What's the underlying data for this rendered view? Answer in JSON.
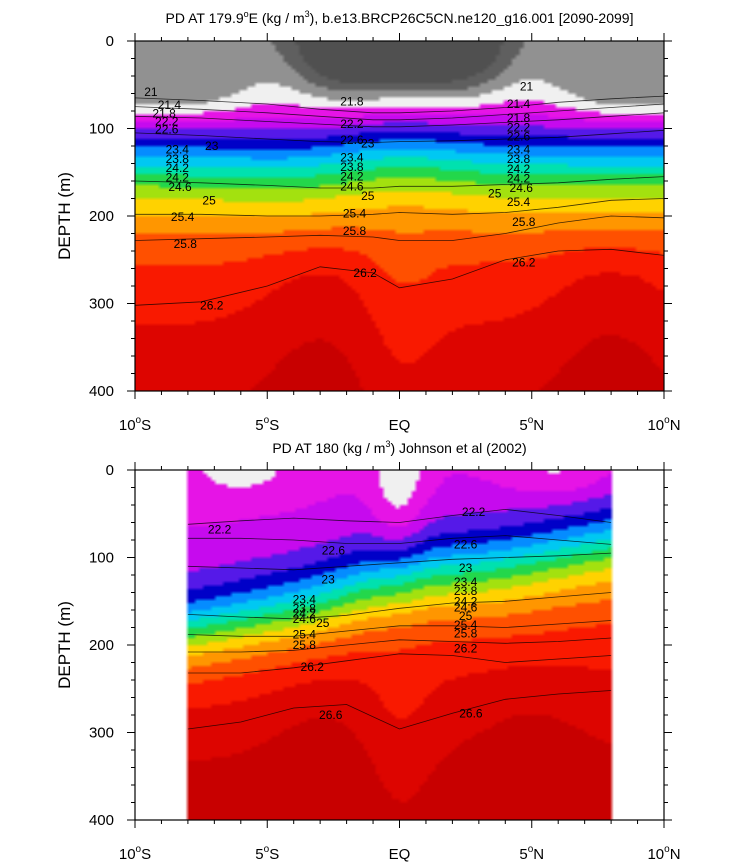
{
  "chart_data": [
    {
      "type": "contour",
      "title_prefix": "PD AT 179.9",
      "title_deg": "o",
      "title_mid": "E (kg / m",
      "title_sup": "3",
      "title_suffix": "), b.e13.BRCP26C5CN.ne120_g16.001 [2090-2099]",
      "ylabel": "DEPTH (m)",
      "xlim": [
        -10,
        10
      ],
      "ylim": [
        0,
        400
      ],
      "x_ticks": [
        {
          "v": -10,
          "label": "10",
          "deg": "o",
          "hemi": "S"
        },
        {
          "v": -5,
          "label": "5",
          "deg": "o",
          "hemi": "S"
        },
        {
          "v": 0,
          "label": "EQ",
          "deg": "",
          "hemi": ""
        },
        {
          "v": 5,
          "label": "5",
          "deg": "o",
          "hemi": "N"
        },
        {
          "v": 10,
          "label": "10",
          "deg": "o",
          "hemi": "N"
        }
      ],
      "y_ticks": [
        "0",
        "100",
        "200",
        "300",
        "400"
      ],
      "y_tick_values": [
        0,
        100,
        200,
        300,
        400
      ],
      "data_extent": [
        -10,
        10
      ],
      "contour_levels": [
        20.2,
        20.6,
        21,
        21.4,
        21.8,
        22.2,
        22.6,
        23,
        23.4,
        23.8,
        24.2,
        24.6,
        25,
        25.4,
        25.8,
        26.2,
        26.6,
        27
      ],
      "isopycnal_depths": [
        {
          "level": 21.4,
          "x": [
            -10,
            -7.5,
            -5,
            -3,
            -1,
            0,
            2,
            4,
            6,
            8,
            10
          ],
          "depth": [
            65,
            68,
            72,
            78,
            82,
            82,
            80,
            76,
            70,
            66,
            63
          ]
        },
        {
          "level": 21.8,
          "x": [
            -10,
            -7.5,
            -5,
            -3,
            -1,
            0,
            2,
            4,
            6,
            8,
            10
          ],
          "depth": [
            75,
            78,
            82,
            86,
            90,
            90,
            88,
            84,
            80,
            76,
            72
          ]
        },
        {
          "level": 22.2,
          "x": [
            -10,
            -7.5,
            -5,
            -3,
            -1,
            0,
            2,
            4,
            6,
            8,
            10
          ],
          "depth": [
            86,
            88,
            92,
            95,
            98,
            98,
            96,
            93,
            90,
            86,
            82
          ]
        },
        {
          "level": 23,
          "x": [
            -10,
            -7.5,
            -5,
            -3,
            -1,
            0,
            2,
            4,
            6,
            8,
            10
          ],
          "depth": [
            105,
            108,
            112,
            115,
            116,
            115,
            114,
            112,
            110,
            106,
            102
          ]
        },
        {
          "level": 24.6,
          "x": [
            -10,
            -7.5,
            -5,
            -3,
            -1,
            0,
            2,
            4,
            6,
            8,
            10
          ],
          "depth": [
            160,
            162,
            165,
            168,
            168,
            166,
            166,
            164,
            162,
            158,
            155
          ]
        },
        {
          "level": 25.4,
          "x": [
            -10,
            -7.5,
            -5,
            -3,
            -1,
            0,
            2,
            4,
            6,
            8,
            10
          ],
          "depth": [
            198,
            198,
            200,
            200,
            198,
            196,
            198,
            196,
            190,
            182,
            180
          ]
        },
        {
          "level": 25.8,
          "x": [
            -10,
            -7.5,
            -5,
            -3,
            -1,
            0,
            2,
            4,
            6,
            8,
            10
          ],
          "depth": [
            228,
            226,
            224,
            222,
            224,
            228,
            228,
            220,
            208,
            200,
            202
          ]
        },
        {
          "level": 26.2,
          "x": [
            -10,
            -7.5,
            -5,
            -3,
            -1,
            0,
            2,
            4,
            6,
            8,
            10
          ],
          "depth": [
            302,
            298,
            280,
            258,
            265,
            282,
            272,
            250,
            240,
            238,
            245
          ]
        }
      ],
      "contour_labels": [
        {
          "text": "21",
          "x": -9.4,
          "depth": 58
        },
        {
          "text": "21.4",
          "x": -8.7,
          "depth": 73
        },
        {
          "text": "21.8",
          "x": -8.9,
          "depth": 83
        },
        {
          "text": "22.2",
          "x": -8.8,
          "depth": 92
        },
        {
          "text": "22.6",
          "x": -8.8,
          "depth": 101
        },
        {
          "text": "23",
          "x": -7.1,
          "depth": 120
        },
        {
          "text": "23.4",
          "x": -8.4,
          "depth": 124
        },
        {
          "text": "23.8",
          "x": -8.4,
          "depth": 135
        },
        {
          "text": "24.2",
          "x": -8.4,
          "depth": 145
        },
        {
          "text": "24.2",
          "x": -8.4,
          "depth": 156
        },
        {
          "text": "24.6",
          "x": -8.3,
          "depth": 167
        },
        {
          "text": "25",
          "x": -7.2,
          "depth": 182
        },
        {
          "text": "25.4",
          "x": -8.2,
          "depth": 201
        },
        {
          "text": "25.8",
          "x": -8.1,
          "depth": 232
        },
        {
          "text": "26.2",
          "x": -7.1,
          "depth": 302
        },
        {
          "text": "21.8",
          "x": -1.8,
          "depth": 69
        },
        {
          "text": "22.2",
          "x": -1.8,
          "depth": 95
        },
        {
          "text": "22.6",
          "x": -1.8,
          "depth": 113
        },
        {
          "text": "23",
          "x": -1.2,
          "depth": 117
        },
        {
          "text": "23.4",
          "x": -1.8,
          "depth": 133
        },
        {
          "text": "23.8",
          "x": -1.8,
          "depth": 144
        },
        {
          "text": "24.2",
          "x": -1.8,
          "depth": 155
        },
        {
          "text": "24.6",
          "x": -1.8,
          "depth": 166
        },
        {
          "text": "25",
          "x": -1.2,
          "depth": 177
        },
        {
          "text": "25.4",
          "x": -1.7,
          "depth": 197
        },
        {
          "text": "25.8",
          "x": -1.7,
          "depth": 217
        },
        {
          "text": "26.2",
          "x": -1.3,
          "depth": 265
        },
        {
          "text": "21",
          "x": 4.8,
          "depth": 52
        },
        {
          "text": "21.4",
          "x": 4.5,
          "depth": 72
        },
        {
          "text": "21.8",
          "x": 4.5,
          "depth": 88
        },
        {
          "text": "22.2",
          "x": 4.5,
          "depth": 99
        },
        {
          "text": "22.6",
          "x": 4.5,
          "depth": 109
        },
        {
          "text": "23.4",
          "x": 4.5,
          "depth": 124
        },
        {
          "text": "23.8",
          "x": 4.5,
          "depth": 135
        },
        {
          "text": "24.2",
          "x": 4.5,
          "depth": 146
        },
        {
          "text": "24.2",
          "x": 4.5,
          "depth": 157
        },
        {
          "text": "24.6",
          "x": 4.6,
          "depth": 168
        },
        {
          "text": "25",
          "x": 3.6,
          "depth": 174
        },
        {
          "text": "25.4",
          "x": 4.5,
          "depth": 184
        },
        {
          "text": "25.8",
          "x": 4.7,
          "depth": 207
        },
        {
          "text": "26.2",
          "x": 4.7,
          "depth": 253
        }
      ]
    },
    {
      "type": "contour",
      "title_prefix": "PD AT 180 (kg / m",
      "title_sup": "3",
      "title_suffix": ") Johnson et al (2002)",
      "ylabel": "DEPTH (m)",
      "xlim": [
        -10,
        10
      ],
      "ylim": [
        0,
        400
      ],
      "x_ticks": [
        {
          "v": -10,
          "label": "10",
          "deg": "o",
          "hemi": "S"
        },
        {
          "v": -5,
          "label": "5",
          "deg": "o",
          "hemi": "S"
        },
        {
          "v": 0,
          "label": "EQ",
          "deg": "",
          "hemi": ""
        },
        {
          "v": 5,
          "label": "5",
          "deg": "o",
          "hemi": "N"
        },
        {
          "v": 10,
          "label": "10",
          "deg": "o",
          "hemi": "N"
        }
      ],
      "y_ticks": [
        "0",
        "100",
        "200",
        "300",
        "400"
      ],
      "y_tick_values": [
        0,
        100,
        200,
        300,
        400
      ],
      "data_extent": [
        -8,
        8
      ],
      "contour_levels": [
        20.2,
        20.6,
        21,
        21.4,
        21.8,
        22.2,
        22.6,
        23,
        23.4,
        23.8,
        24.2,
        24.6,
        25,
        25.4,
        25.8,
        26.2,
        26.6,
        27
      ],
      "isopycnal_depths": [
        {
          "level": 22.2,
          "x": [
            -8,
            -6,
            -4,
            -2,
            0,
            2,
            4,
            6,
            8
          ],
          "depth": [
            62,
            58,
            55,
            58,
            60,
            52,
            45,
            52,
            60
          ]
        },
        {
          "level": 22.6,
          "x": [
            -8,
            -6,
            -4,
            -2,
            0,
            2,
            4,
            6,
            8
          ],
          "depth": [
            78,
            78,
            80,
            84,
            84,
            78,
            75,
            80,
            85
          ]
        },
        {
          "level": 23,
          "x": [
            -8,
            -6,
            -4,
            -2,
            0,
            2,
            4,
            6,
            8
          ],
          "depth": [
            110,
            112,
            114,
            110,
            106,
            102,
            100,
            98,
            95
          ]
        },
        {
          "level": 24.6,
          "x": [
            -8,
            -6,
            -4,
            -2,
            0,
            2,
            4,
            6,
            8
          ],
          "depth": [
            165,
            168,
            170,
            166,
            158,
            152,
            150,
            145,
            140
          ]
        },
        {
          "level": 25.4,
          "x": [
            -8,
            -6,
            -4,
            -2,
            0,
            2,
            4,
            6,
            8
          ],
          "depth": [
            188,
            190,
            190,
            184,
            178,
            178,
            180,
            176,
            172
          ]
        },
        {
          "level": 25.8,
          "x": [
            -8,
            -6,
            -4,
            -2,
            0,
            2,
            4,
            6,
            8
          ],
          "depth": [
            208,
            208,
            206,
            200,
            194,
            196,
            198,
            196,
            192
          ]
        },
        {
          "level": 26.2,
          "x": [
            -8,
            -6,
            -4,
            -2,
            0,
            2,
            4,
            6,
            8
          ],
          "depth": [
            232,
            232,
            226,
            218,
            210,
            212,
            220,
            216,
            212
          ]
        },
        {
          "level": 26.6,
          "x": [
            -8,
            -6,
            -4,
            -2,
            0,
            2,
            4,
            6,
            8
          ],
          "depth": [
            296,
            288,
            272,
            268,
            296,
            278,
            262,
            256,
            252
          ]
        }
      ],
      "contour_labels": [
        {
          "text": "22.2",
          "x": -6.8,
          "depth": 68
        },
        {
          "text": "22.6",
          "x": -2.5,
          "depth": 92
        },
        {
          "text": "23",
          "x": -2.7,
          "depth": 125
        },
        {
          "text": "23.4",
          "x": -3.6,
          "depth": 148
        },
        {
          "text": "23.8",
          "x": -3.6,
          "depth": 158
        },
        {
          "text": "24.2",
          "x": -3.6,
          "depth": 164
        },
        {
          "text": "24.6",
          "x": -3.6,
          "depth": 170
        },
        {
          "text": "25",
          "x": -2.9,
          "depth": 175
        },
        {
          "text": "25.4",
          "x": -3.6,
          "depth": 188
        },
        {
          "text": "25.8",
          "x": -3.6,
          "depth": 200
        },
        {
          "text": "26.2",
          "x": -3.3,
          "depth": 225
        },
        {
          "text": "26.6",
          "x": -2.6,
          "depth": 280
        },
        {
          "text": "22.2",
          "x": 2.8,
          "depth": 48
        },
        {
          "text": "22.6",
          "x": 2.5,
          "depth": 85
        },
        {
          "text": "23",
          "x": 2.5,
          "depth": 112
        },
        {
          "text": "23.4",
          "x": 2.5,
          "depth": 128
        },
        {
          "text": "23.8",
          "x": 2.5,
          "depth": 138
        },
        {
          "text": "24.2",
          "x": 2.5,
          "depth": 150
        },
        {
          "text": "24.6",
          "x": 2.5,
          "depth": 157
        },
        {
          "text": "25",
          "x": 2.5,
          "depth": 167
        },
        {
          "text": "25.4",
          "x": 2.5,
          "depth": 177
        },
        {
          "text": "25.8",
          "x": 2.5,
          "depth": 187
        },
        {
          "text": "26.2",
          "x": 2.5,
          "depth": 204
        },
        {
          "text": "26.6",
          "x": 2.7,
          "depth": 278
        }
      ]
    }
  ]
}
